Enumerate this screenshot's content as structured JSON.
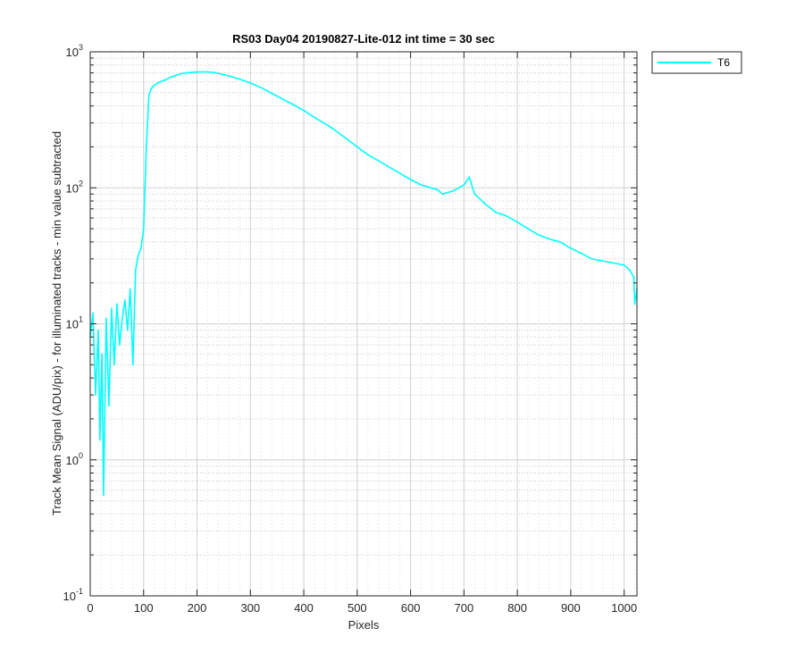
{
  "chart_data": {
    "type": "line",
    "title": "RS03 Day04 20190827-Lite-012 int time = 30 sec",
    "xlabel": "Pixels",
    "ylabel": "Track Mean Signal (ADU/pix) - for illuminated tracks - min value subtracted",
    "xlim": [
      0,
      1024
    ],
    "ylim": [
      0.1,
      1000
    ],
    "yscale": "log",
    "grid": true,
    "minor_grid": true,
    "legend_position": "outside-top-right",
    "x_ticks": [
      "0",
      "100",
      "200",
      "300",
      "400",
      "500",
      "600",
      "700",
      "800",
      "900",
      "1000"
    ],
    "y_ticks": [
      {
        "base": "10",
        "exp": "-1"
      },
      {
        "base": "10",
        "exp": "0"
      },
      {
        "base": "10",
        "exp": "1"
      },
      {
        "base": "10",
        "exp": "2"
      },
      {
        "base": "10",
        "exp": "3"
      }
    ],
    "series": [
      {
        "name": "T6",
        "color": "#00ffff",
        "x": [
          0,
          5,
          10,
          15,
          18,
          22,
          25,
          30,
          35,
          40,
          45,
          50,
          55,
          60,
          65,
          70,
          75,
          80,
          85,
          90,
          95,
          100,
          105,
          110,
          115,
          120,
          130,
          140,
          150,
          160,
          170,
          180,
          190,
          200,
          210,
          220,
          230,
          240,
          250,
          260,
          280,
          300,
          320,
          340,
          360,
          380,
          400,
          420,
          450,
          480,
          500,
          520,
          550,
          580,
          600,
          620,
          650,
          660,
          680,
          700,
          710,
          720,
          740,
          760,
          780,
          800,
          820,
          840,
          860,
          880,
          900,
          920,
          940,
          960,
          980,
          1000,
          1010,
          1018,
          1020,
          1024
        ],
        "y": [
          8,
          12,
          3,
          9,
          1.4,
          6,
          0.55,
          11,
          2.5,
          13,
          5,
          14,
          7,
          11,
          15,
          9,
          18,
          5,
          25,
          32,
          36,
          50,
          200,
          480,
          540,
          570,
          600,
          620,
          650,
          670,
          690,
          700,
          705,
          710,
          712,
          712,
          705,
          695,
          680,
          665,
          630,
          590,
          545,
          495,
          450,
          410,
          370,
          330,
          280,
          230,
          200,
          175,
          150,
          128,
          115,
          105,
          97,
          90,
          95,
          105,
          120,
          90,
          76,
          66,
          62,
          56,
          50,
          45,
          42,
          40,
          36,
          33,
          30,
          29,
          28,
          27,
          25,
          22,
          14,
          18
        ]
      }
    ]
  }
}
